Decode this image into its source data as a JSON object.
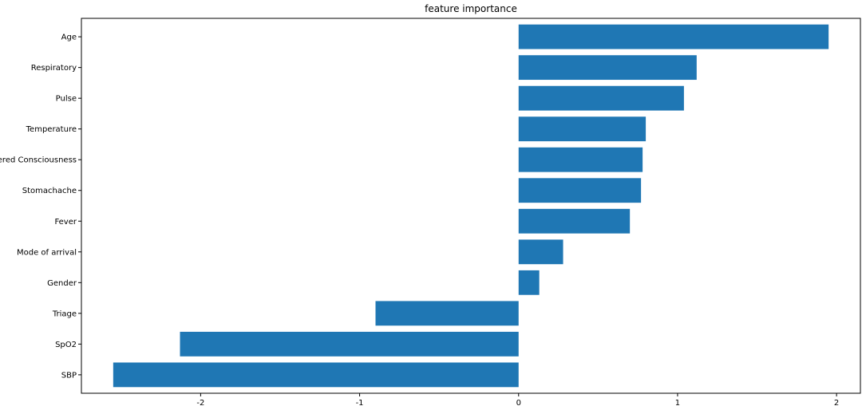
{
  "chart_data": {
    "type": "bar",
    "orientation": "horizontal",
    "title": "feature importance",
    "xlabel": "",
    "ylabel": "",
    "categories": [
      "Age",
      "Respiratory",
      "Pulse",
      "Temperature",
      "Altered Consciousness",
      "Stomachache",
      "Fever",
      "Mode of arrival",
      "Gender",
      "Triage",
      "SpO2",
      "SBP"
    ],
    "values": [
      1.95,
      1.12,
      1.04,
      0.8,
      0.78,
      0.77,
      0.7,
      0.28,
      0.13,
      -0.9,
      -2.13,
      -2.55
    ],
    "xlim": [
      -2.75,
      2.15
    ],
    "xticks": [
      -2,
      -1,
      0,
      1,
      2
    ],
    "grid": false,
    "bar_color": "#1f77b4"
  }
}
